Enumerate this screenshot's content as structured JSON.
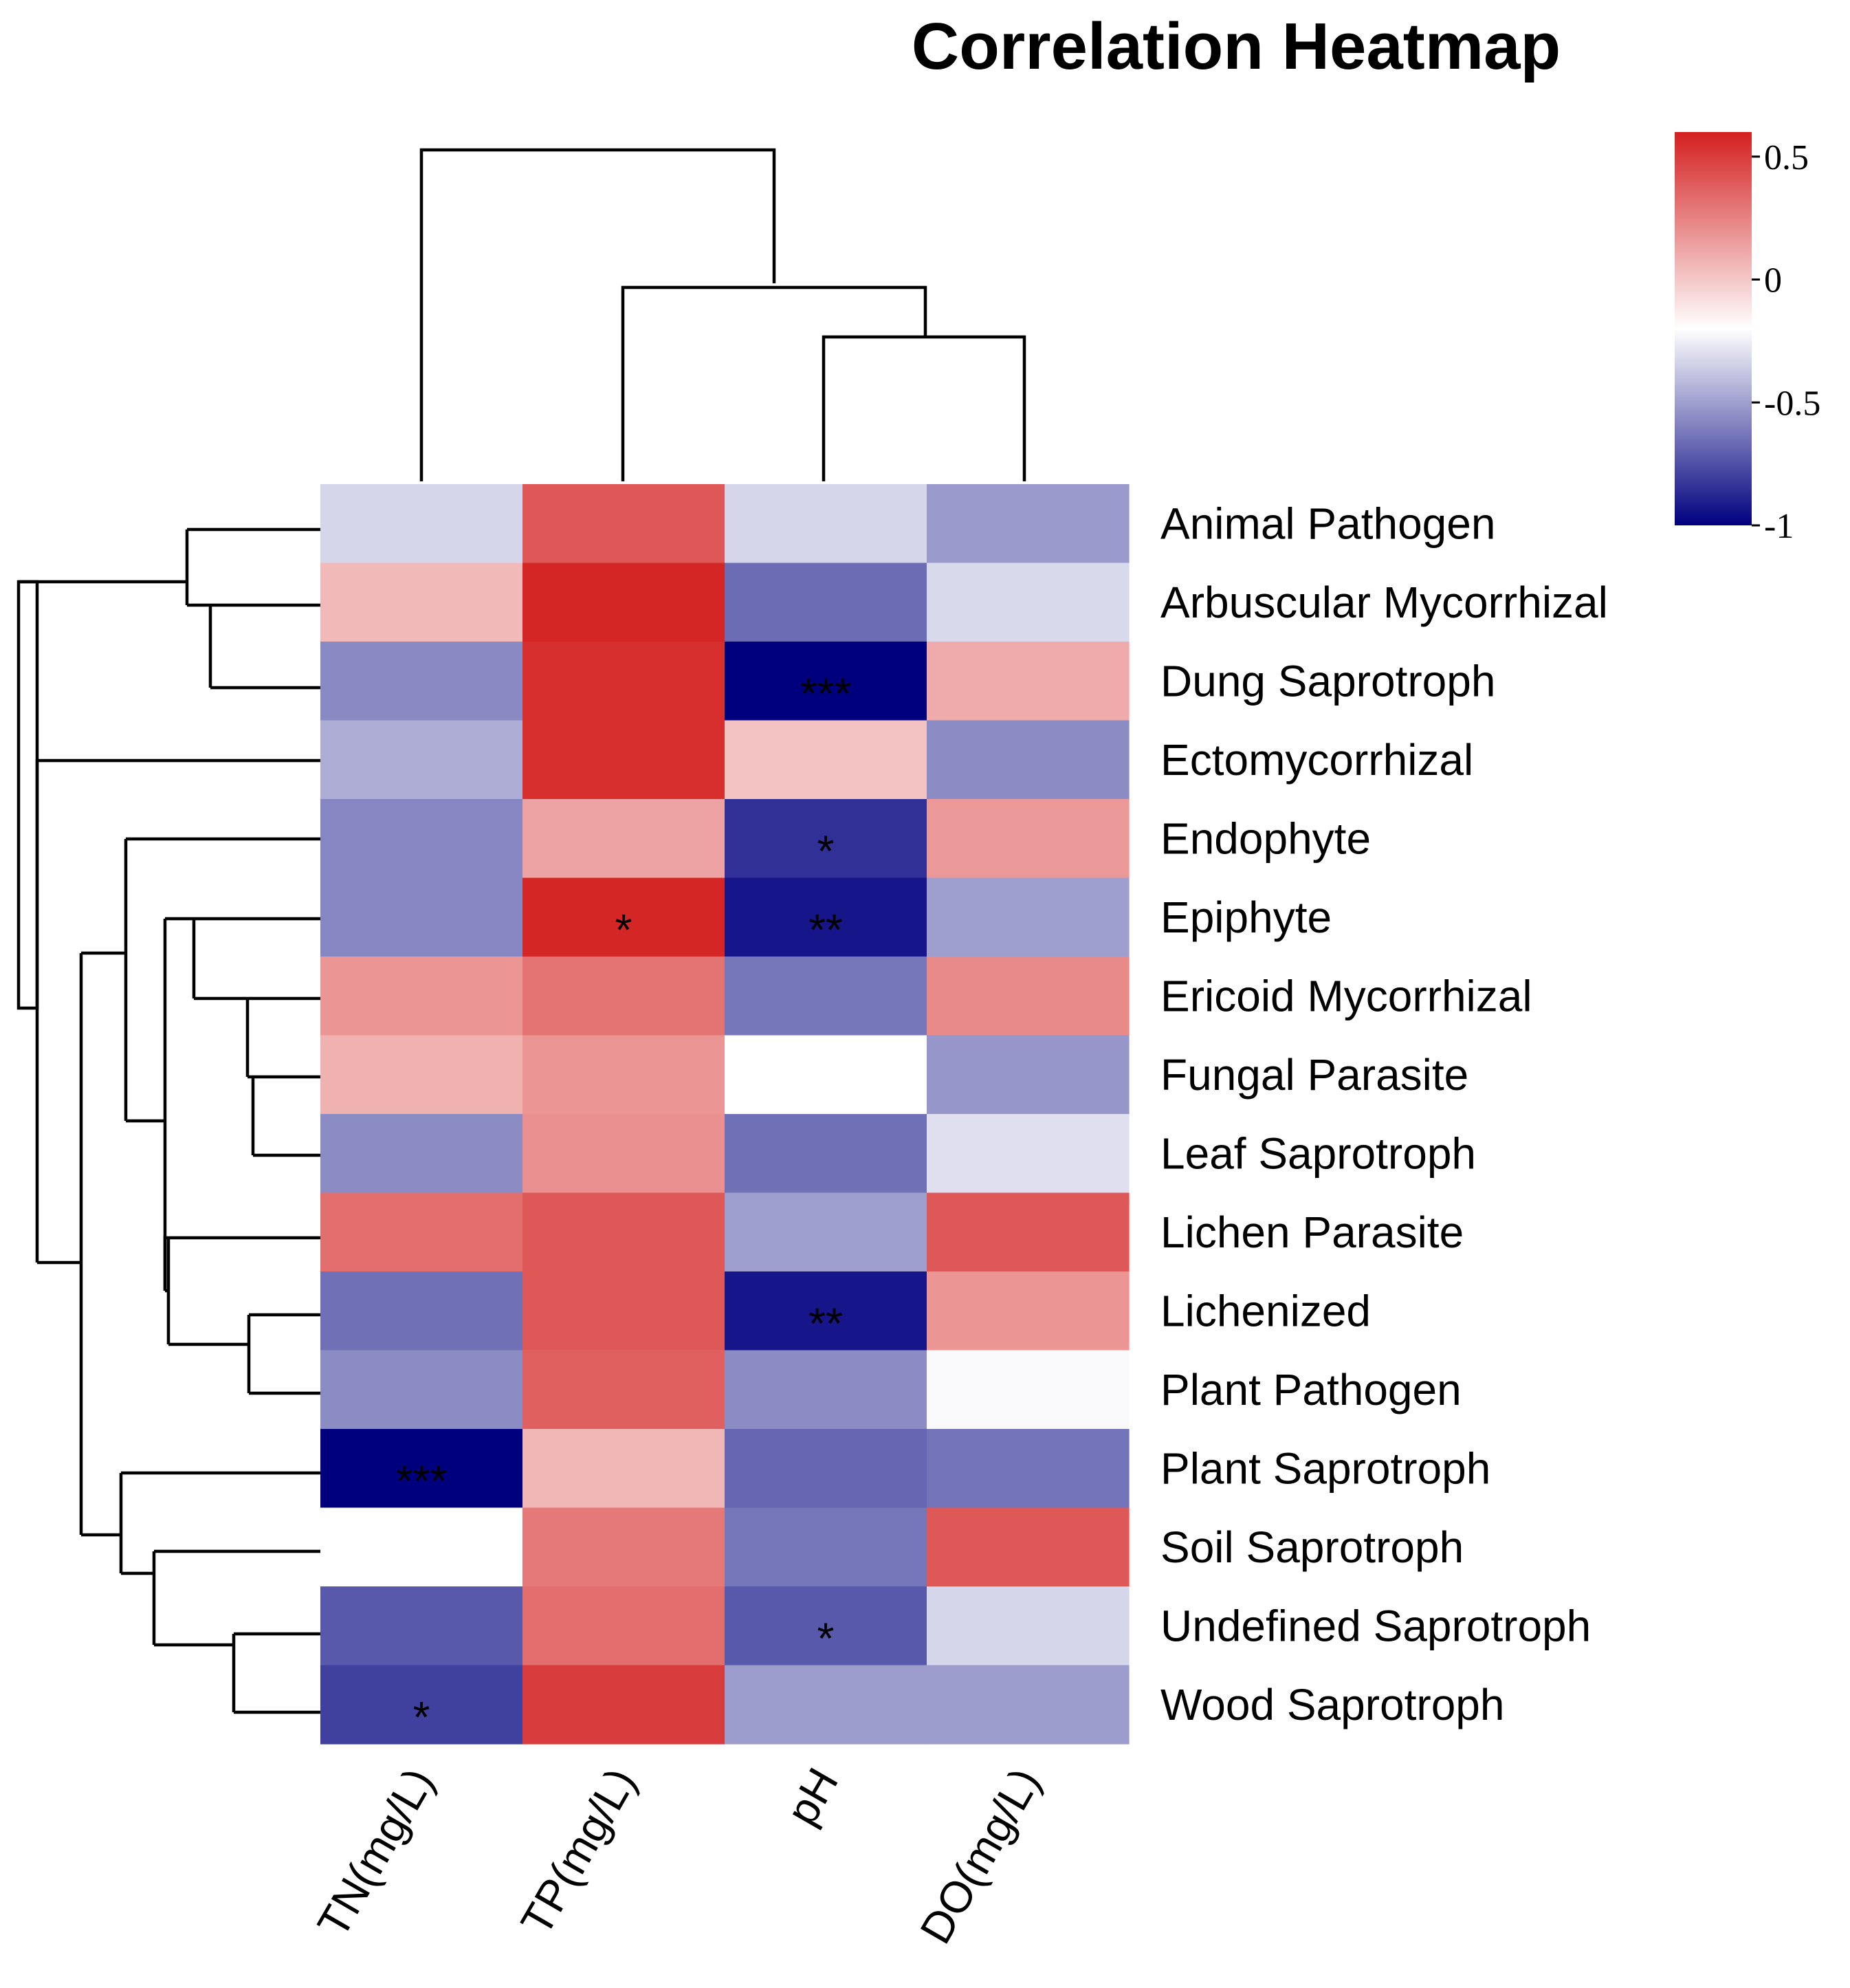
{
  "chart_data": {
    "type": "heatmap",
    "title": "Correlation Heatmap",
    "columns": [
      "TN(mg/L)",
      "TP(mg/L)",
      "pH",
      "DO(mg/L)"
    ],
    "rows": [
      "Animal Pathogen",
      "Arbuscular Mycorrhizal",
      "Dung Saprotroph",
      "Ectomycorrhizal",
      "Endophyte",
      "Epiphyte",
      "Ericoid Mycorrhizal",
      "Fungal Parasite",
      "Leaf Saprotroph",
      "Lichen Parasite",
      "Lichenized",
      "Plant Pathogen",
      "Plant Saprotroph",
      "Soil Saprotroph",
      "Undefined Saprotroph",
      "Wood Saprotroph"
    ],
    "values": [
      [
        -0.33,
        0.4,
        -0.33,
        -0.52
      ],
      [
        0.05,
        0.58,
        -0.66,
        -0.32
      ],
      [
        -0.57,
        0.55,
        -1.0,
        0.1
      ],
      [
        -0.46,
        0.55,
        0.02,
        -0.56
      ],
      [
        -0.58,
        0.13,
        -0.85,
        0.17
      ],
      [
        -0.58,
        0.58,
        -0.93,
        -0.5
      ],
      [
        0.18,
        0.3,
        -0.63,
        0.22
      ],
      [
        0.08,
        0.18,
        -0.2,
        -0.53
      ],
      [
        -0.56,
        0.2,
        -0.65,
        -0.3
      ],
      [
        0.32,
        0.4,
        -0.5,
        0.4
      ],
      [
        -0.65,
        0.4,
        -0.93,
        0.18
      ],
      [
        -0.56,
        0.37,
        -0.56,
        -0.22
      ],
      [
        -1.0,
        0.06,
        -0.68,
        -0.64
      ],
      [
        -0.2,
        0.28,
        -0.63,
        0.4
      ],
      [
        -0.72,
        0.32,
        -0.72,
        -0.33
      ],
      [
        -0.8,
        0.5,
        -0.51,
        -0.51
      ]
    ],
    "significance": [
      [
        "",
        "",
        "",
        ""
      ],
      [
        "",
        "",
        "",
        ""
      ],
      [
        "",
        "",
        "***",
        ""
      ],
      [
        "",
        "",
        "",
        ""
      ],
      [
        "",
        "",
        "*",
        ""
      ],
      [
        "",
        "*",
        "**",
        ""
      ],
      [
        "",
        "",
        "",
        ""
      ],
      [
        "",
        "",
        "",
        ""
      ],
      [
        "",
        "",
        "",
        ""
      ],
      [
        "",
        "",
        "",
        ""
      ],
      [
        "",
        "",
        "**",
        ""
      ],
      [
        "",
        "",
        "",
        ""
      ],
      [
        "***",
        "",
        "",
        ""
      ],
      [
        "",
        "",
        "",
        ""
      ],
      [
        "",
        "",
        "*",
        ""
      ],
      [
        "*",
        "",
        "",
        ""
      ]
    ],
    "colorbar": {
      "min": -1,
      "max": 0.6,
      "midpoint": -0.2,
      "colors": {
        "low": "#00007f",
        "mid": "#ffffff",
        "high": "#d42020"
      },
      "ticks": [
        0.5,
        0,
        -0.5,
        -1
      ],
      "tick_labels": [
        "0.5",
        "0",
        "-0.5",
        "-1"
      ]
    },
    "dendrogram_columns": "((TN(mg/L)),((TP(mg/L)),(pH,DO(mg/L))))",
    "dendrogram_rows": "clustered"
  }
}
